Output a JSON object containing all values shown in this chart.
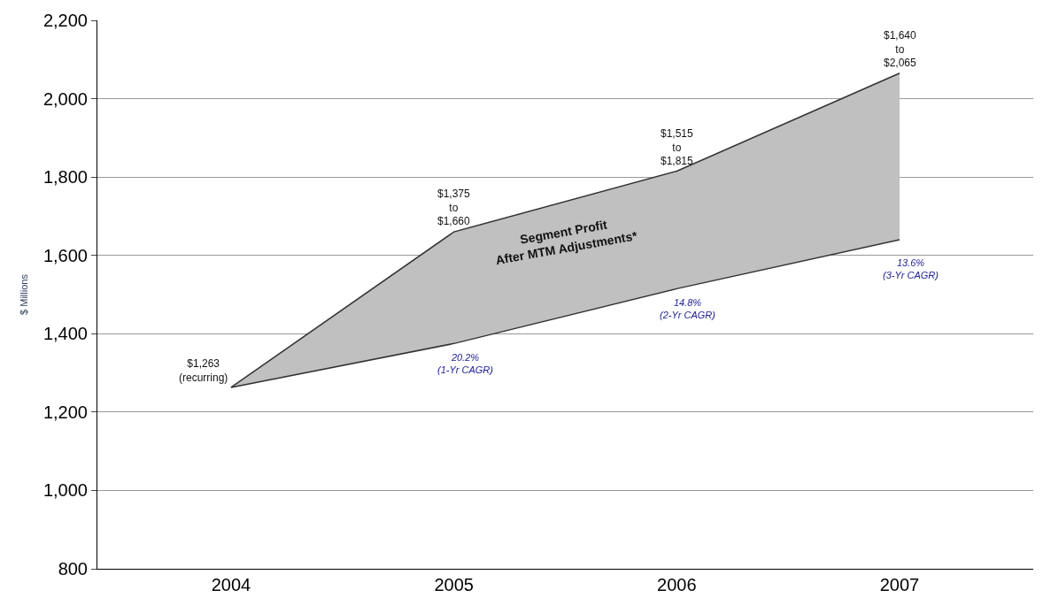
{
  "chart_data": {
    "type": "area",
    "ylabel": "$ Millions",
    "categories": [
      "2004",
      "2005",
      "2006",
      "2007"
    ],
    "series": [
      {
        "type": "line",
        "color": "#333333",
        "values": [
          1263,
          1375,
          1515,
          1640
        ]
      },
      {
        "color": "#c0c0c0",
        "values": [
          1263,
          1660,
          1815,
          2065
        ]
      }
    ],
    "ylim": [
      800,
      2200
    ],
    "yticks": [
      800,
      {
        "value": 1000,
        "label": "1,000"
      },
      {
        "value": 1200,
        "label": "1,200"
      },
      {
        "value": 1400,
        "label": "1,400"
      },
      {
        "value": 1600,
        "label": "1,600"
      },
      {
        "value": 1800,
        "label": "1,800"
      },
      {
        "value": 2000,
        "label": "2,000"
      },
      {
        "value": 2200,
        "label": "2,200"
      }
    ],
    "grid": "y",
    "annotations": [
      {
        "text": "$1,263\n(recurring)",
        "x": "2004",
        "y": 1263
      },
      {
        "text": "$1,375\nto\n$1,660",
        "x": "2005",
        "y": 1660
      },
      {
        "text": "$1,515\nto\n$1,815",
        "x": "2006",
        "y": 1815
      },
      {
        "text": "$1,640\nto\n$2,065",
        "x": "2007",
        "y": 2065
      },
      "20.2%\n(1-Yr CAGR)",
      "14.8%\n(2-Yr CAGR)",
      "13.6%\n(3-Yr CAGR)",
      "Segment Profit\nAfter MTM Adjustments*"
    ]
  }
}
